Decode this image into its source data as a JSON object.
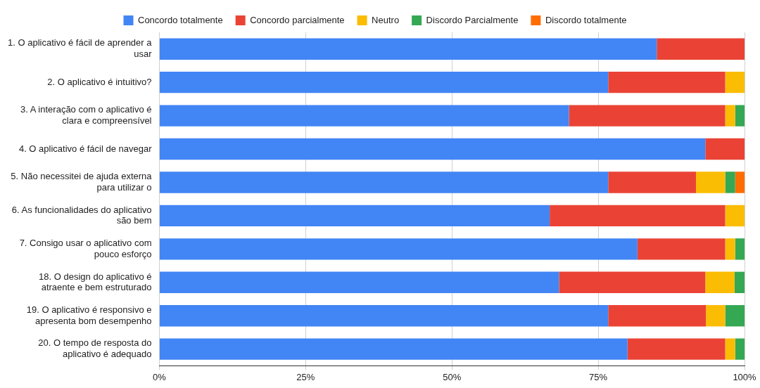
{
  "chart_data": {
    "type": "bar",
    "orientation": "horizontal",
    "stacked": true,
    "legend": "top",
    "grid": "x",
    "categories": [
      "1. O aplicativo é fácil de aprender a usar",
      "2. O aplicativo é intuitivo?",
      "3. A interação com o aplicativo é clara e compreensível",
      "4. O aplicativo é fácil de navegar",
      "5. Não necessitei de ajuda externa para utilizar o",
      "6. As funcionalidades do aplicativo são bem",
      "7. Consigo usar o aplicativo com pouco esforço",
      "18. O design do aplicativo é atraente e bem estruturado",
      "19. O aplicativo é responsivo e apresenta bom desempenho",
      "20. O tempo de resposta do aplicativo é adequado"
    ],
    "series": [
      {
        "name": "Concordo totalmente",
        "color": "#4285f4",
        "values": [
          85,
          76.7,
          70,
          93.3,
          76.7,
          66.7,
          81.7,
          68.3,
          76.7,
          80
        ]
      },
      {
        "name": "Concordo parcialmente",
        "color": "#ea4335",
        "values": [
          15,
          20,
          26.7,
          6.7,
          15,
          30,
          15,
          25,
          16.7,
          16.7
        ]
      },
      {
        "name": "Neutro",
        "color": "#fbbc04",
        "values": [
          0,
          3.3,
          1.7,
          0,
          5,
          3.3,
          1.7,
          5,
          3.3,
          1.7
        ]
      },
      {
        "name": "Discordo Parcialmente",
        "color": "#34a853",
        "values": [
          0,
          0,
          1.6,
          0,
          1.7,
          0,
          1.6,
          1.7,
          3.3,
          1.6
        ]
      },
      {
        "name": "Discordo totalmente",
        "color": "#ff6d01",
        "values": [
          0,
          0,
          0,
          0,
          1.6,
          0,
          0,
          0,
          0,
          0
        ]
      }
    ],
    "xlim": [
      0,
      100
    ],
    "xticks": [
      {
        "value": 0,
        "label": "0%"
      },
      {
        "value": 25,
        "label": "25%"
      },
      {
        "value": 50,
        "label": "50%"
      },
      {
        "value": 75,
        "label": "75%"
      },
      {
        "value": 100,
        "label": "100%"
      }
    ]
  }
}
